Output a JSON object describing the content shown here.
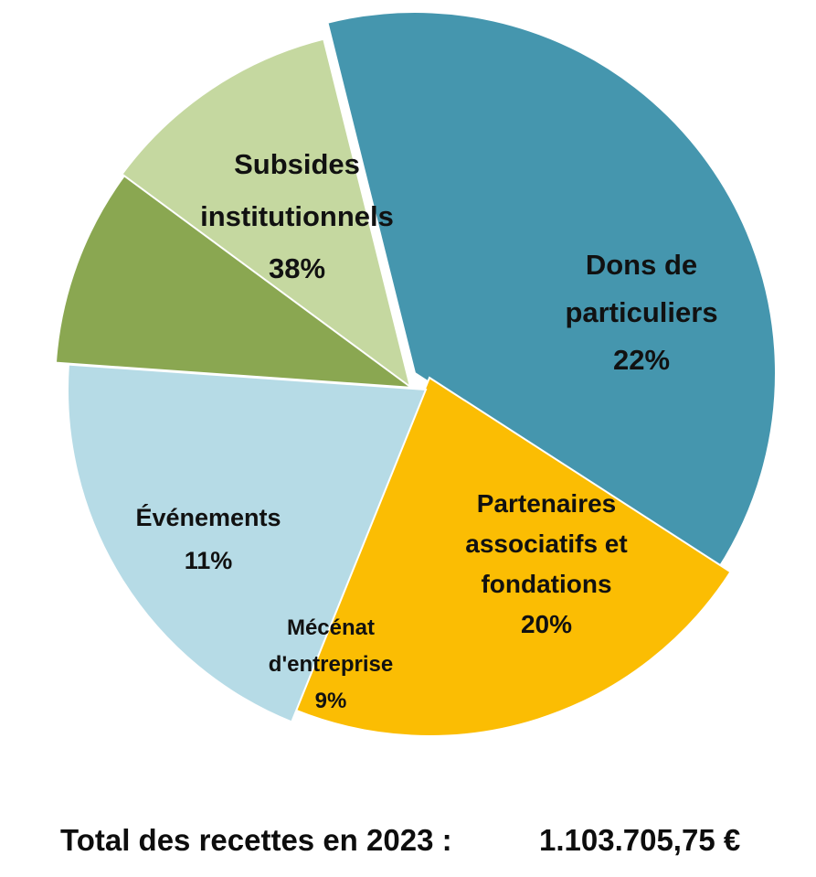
{
  "chart_data": {
    "type": "pie",
    "slices": [
      {
        "label_lines": [
          "Subsides",
          "institutionnels",
          "38%"
        ],
        "value": 38,
        "color": "#4596ae"
      },
      {
        "label_lines": [
          "Dons de",
          "particuliers",
          "22%"
        ],
        "value": 22,
        "color": "#fbbd03"
      },
      {
        "label_lines": [
          "Partenaires",
          "associatifs et",
          "fondations",
          "20%"
        ],
        "value": 20,
        "color": "#b6dbe6"
      },
      {
        "label_lines": [
          "Mécénat",
          "d'entreprise",
          "9%"
        ],
        "value": 9,
        "color": "#8aa751"
      },
      {
        "label_lines": [
          "Événements",
          "11%"
        ],
        "value": 11,
        "color": "#c5d8a0"
      }
    ],
    "exploded": true,
    "legend": "none"
  },
  "footer": {
    "total_label": "Total des recettes en 2023 :",
    "total_value": "1.103.705,75 €"
  }
}
